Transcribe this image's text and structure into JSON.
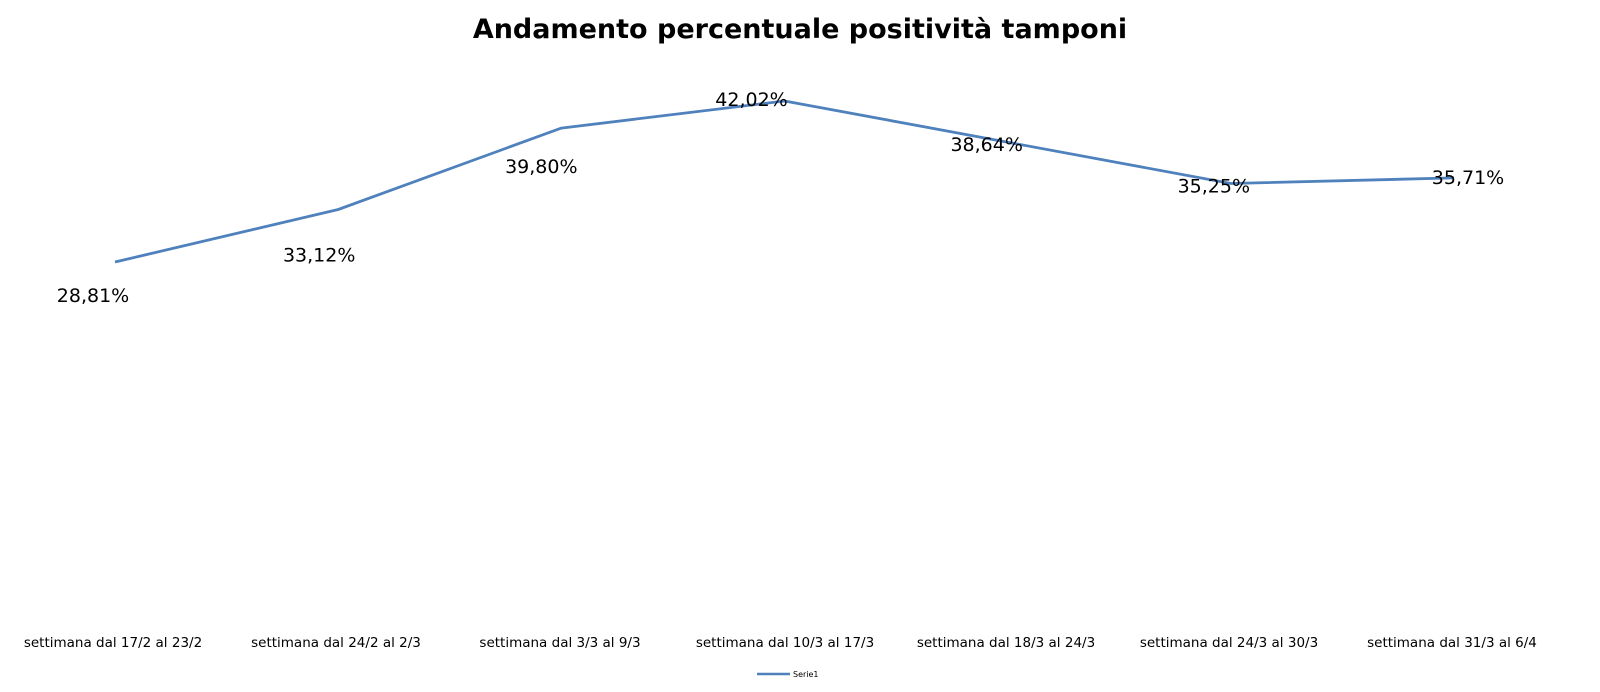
{
  "chart_data": {
    "type": "line",
    "title": "Andamento percentuale positività tamponi",
    "xlabel": "",
    "ylabel": "",
    "categories": [
      "settimana dal 17/2 al 23/2",
      "settimana dal 24/2 al 2/3",
      "settimana dal 3/3 al 9/3",
      "settimana dal 10/3 al 17/3",
      "settimana dal 18/3 al 24/3",
      "settimana dal 24/3 al 30/3",
      "settimana dal 31/3 al 6/4"
    ],
    "series": [
      {
        "name": "Serie1",
        "values": [
          28.81,
          33.12,
          39.8,
          42.02,
          38.64,
          35.25,
          35.71
        ],
        "labels": [
          "28,81%",
          "33,12%",
          "39,80%",
          "42,02%",
          "38,64%",
          "35,25%",
          "35,71%"
        ],
        "color": "#4f81bd"
      }
    ],
    "grid": false,
    "legend": "bottom",
    "axes_visible": false
  }
}
